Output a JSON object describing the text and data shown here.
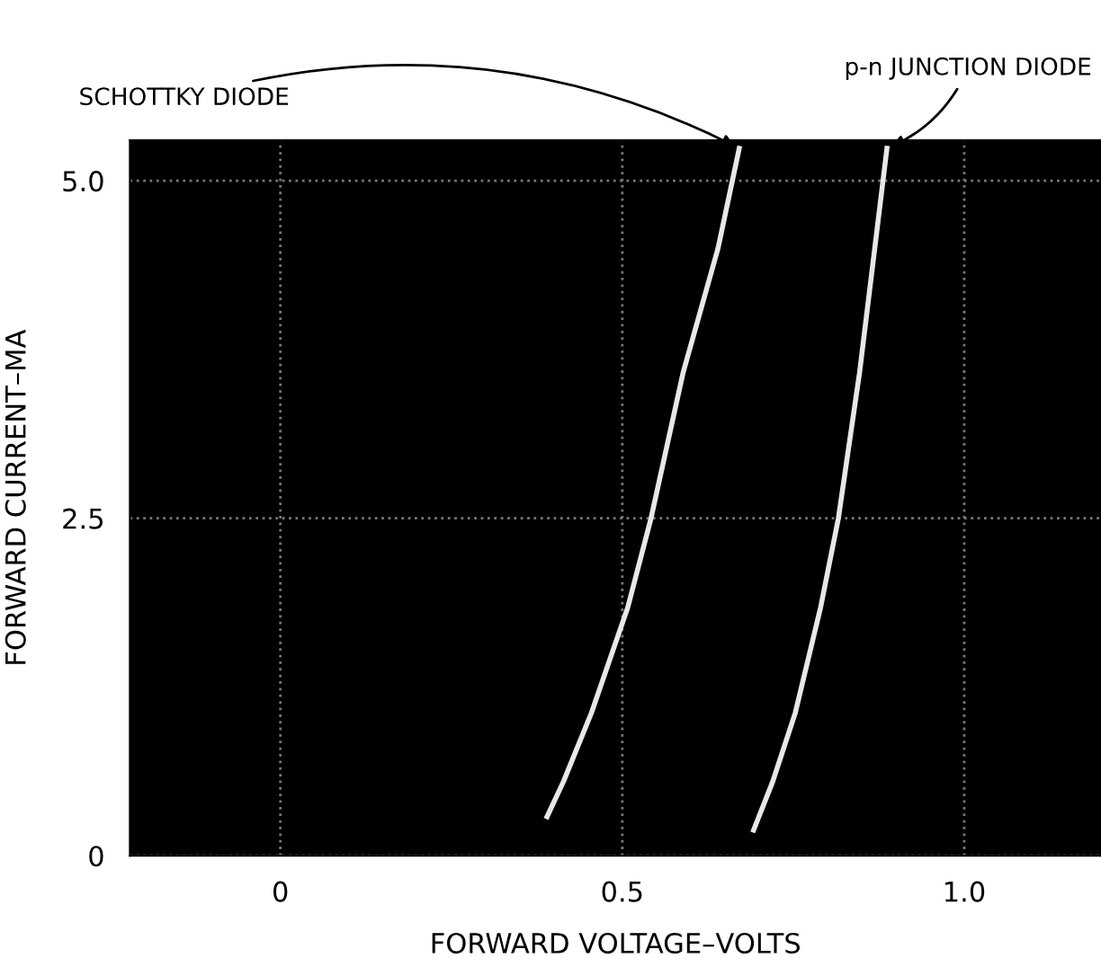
{
  "chart_data": {
    "type": "line",
    "xlabel": "FORWARD VOLTAGE–VOLTS",
    "ylabel": "FORWARD CURRENT–MA",
    "xlim": [
      -0.22,
      1.2
    ],
    "xticks": [
      0,
      0.5,
      {
        "value": 1.0,
        "label": "1.0"
      }
    ],
    "ylim": [
      0,
      5.3
    ],
    "yticks": [
      0,
      2.5,
      {
        "value": 5.0,
        "label": "5.0"
      }
    ],
    "grid": true,
    "line_style": "solid",
    "series": [
      {
        "color": "#e8e8e8",
        "x": [
          0.39,
          0.414,
          0.455,
          0.508,
          0.542,
          0.589,
          0.64,
          0.671
        ],
        "values": [
          0.29,
          0.55,
          1.06,
          1.84,
          2.5,
          3.58,
          4.5,
          5.24
        ]
      },
      {
        "color": "#e8e8e8",
        "x": [
          0.692,
          0.72,
          0.753,
          0.79,
          0.816,
          0.847,
          0.887
        ],
        "values": [
          0.19,
          0.55,
          1.06,
          1.84,
          2.5,
          3.58,
          5.24
        ]
      }
    ],
    "annotations": [
      {
        "text": "SCHOTTKY DIODE",
        "x": 0.671,
        "y": 5.24
      },
      {
        "text": "p-n JUNCTION DIODE",
        "x": 0.887,
        "y": 5.24
      }
    ]
  }
}
